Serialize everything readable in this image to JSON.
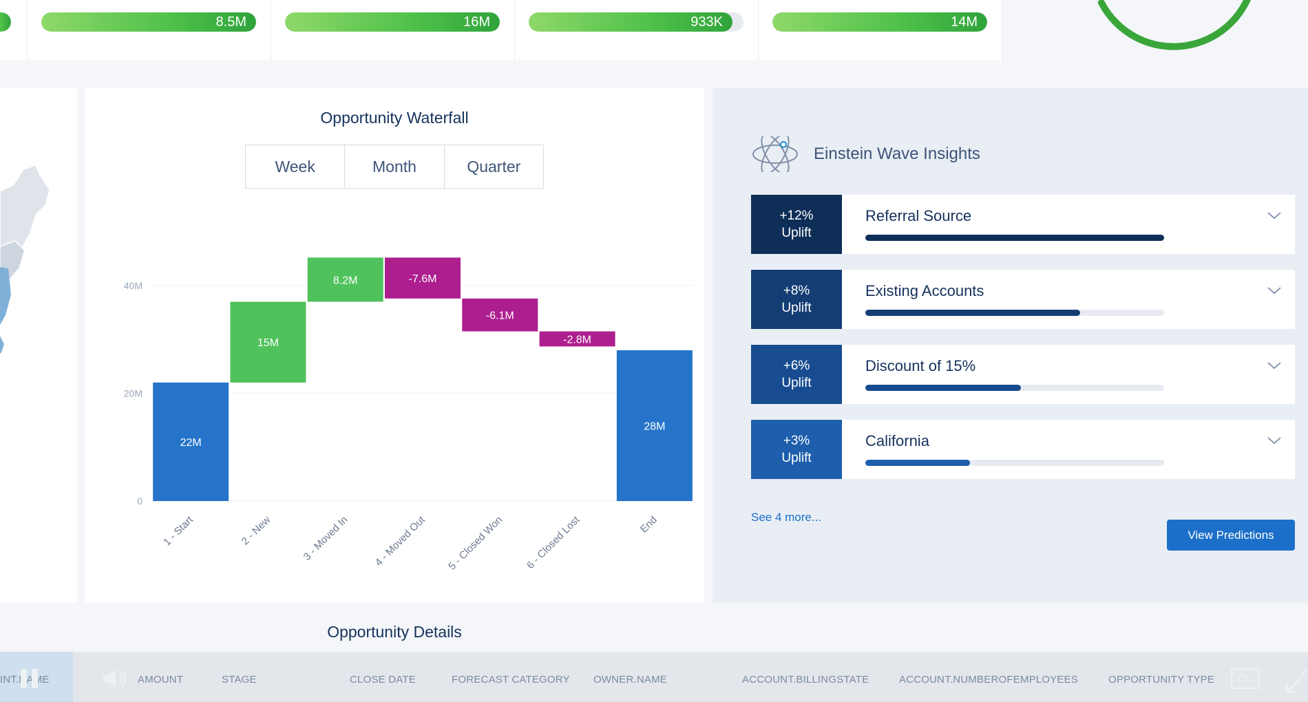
{
  "kpis": [
    {
      "value": "8.5M",
      "fill": 1.0
    },
    {
      "value": "16M",
      "fill": 1.0
    },
    {
      "value": "933K",
      "fill": 0.95
    },
    {
      "value": "14M",
      "fill": 1.0
    }
  ],
  "waterfall": {
    "title": "Opportunity Waterfall",
    "tabs": [
      "Week",
      "Month",
      "Quarter"
    ],
    "chart_data": {
      "type": "bar",
      "categories": [
        "1 - Start",
        "2 - New",
        "3 - Moved In",
        "4 - Moved Out",
        "5 - Closed Won",
        "6 - Closed Lost",
        "End"
      ],
      "values": [
        22,
        15,
        8.2,
        -7.6,
        -6.1,
        -2.8,
        28
      ],
      "value_labels": [
        "22M",
        "15M",
        "8.2M",
        "-7.6M",
        "-6.1M",
        "-2.8M",
        "28M"
      ],
      "kinds": [
        "total",
        "increase",
        "increase",
        "decrease",
        "decrease",
        "decrease",
        "total"
      ],
      "y_ticks": [
        0,
        20,
        40
      ],
      "y_tick_labels": [
        "0",
        "20M",
        "40M"
      ],
      "ylim": [
        0,
        46
      ],
      "colors": {
        "total": "#2574c9",
        "increase": "#4fc25c",
        "decrease": "#ad1f8f"
      }
    }
  },
  "insights": {
    "title": "Einstein Wave Insights",
    "items": [
      {
        "uplift": "+12%",
        "uplift_label": "Uplift",
        "label": "Referral Source",
        "progress": 1.0,
        "bg": "#0e2e58",
        "bar": "#0e2e58"
      },
      {
        "uplift": "+8%",
        "uplift_label": "Uplift",
        "label": "Existing Accounts",
        "progress": 0.72,
        "bg": "#143d74",
        "bar": "#143d74"
      },
      {
        "uplift": "+6%",
        "uplift_label": "Uplift",
        "label": "Discount of 15%",
        "progress": 0.52,
        "bg": "#174d90",
        "bar": "#174d90"
      },
      {
        "uplift": "+3%",
        "uplift_label": "Uplift",
        "label": "California",
        "progress": 0.35,
        "bg": "#1d5fac",
        "bar": "#1d5fac"
      }
    ],
    "see_more": "See 4 more...",
    "view_button": "View Predictions"
  },
  "details": {
    "title": "Opportunity Details",
    "columns": [
      "INT.NAME",
      "AMOUNT",
      "STAGE",
      "CLOSE DATE",
      "FORECAST CATEGORY",
      "OWNER.NAME",
      "ACCOUNT.BILLINGSTATE",
      "ACCOUNT.NUMBEROFEMPLOYEES",
      "OPPORTUNITY TYPE"
    ],
    "cc_label": "CC"
  }
}
